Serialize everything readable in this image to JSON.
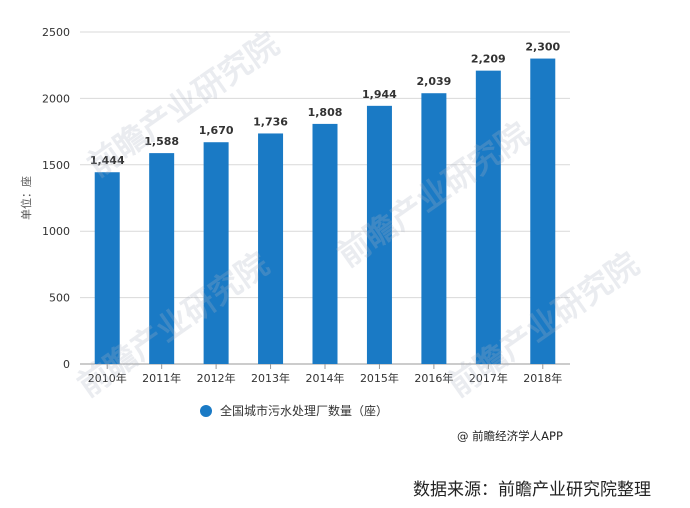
{
  "chart_data": {
    "type": "bar",
    "categories": [
      "2010年",
      "2011年",
      "2012年",
      "2013年",
      "2014年",
      "2015年",
      "2016年",
      "2017年",
      "2018年"
    ],
    "series": [
      {
        "name": "全国城市污水处理厂数量（座）",
        "values": [
          1444,
          1588,
          1670,
          1736,
          1808,
          1944,
          2039,
          2209,
          2300
        ],
        "color": "#1a7ac5"
      }
    ],
    "value_labels": [
      "1,444",
      "1,588",
      "1,670",
      "1,736",
      "1,808",
      "1,944",
      "2,039",
      "2,209",
      "2,300"
    ],
    "ylabel": "单位：座",
    "ylim": [
      0,
      2500
    ],
    "yticks": [
      0,
      500,
      1000,
      1500,
      2000,
      2500
    ],
    "grid": true,
    "legend_position": "bottom"
  },
  "legend_label": "全国城市污水处理厂数量（座）",
  "credit": "@ 前瞻经济学人APP",
  "source": "数据来源：前瞻产业研究院整理",
  "watermark": "前瞻产业研究院"
}
